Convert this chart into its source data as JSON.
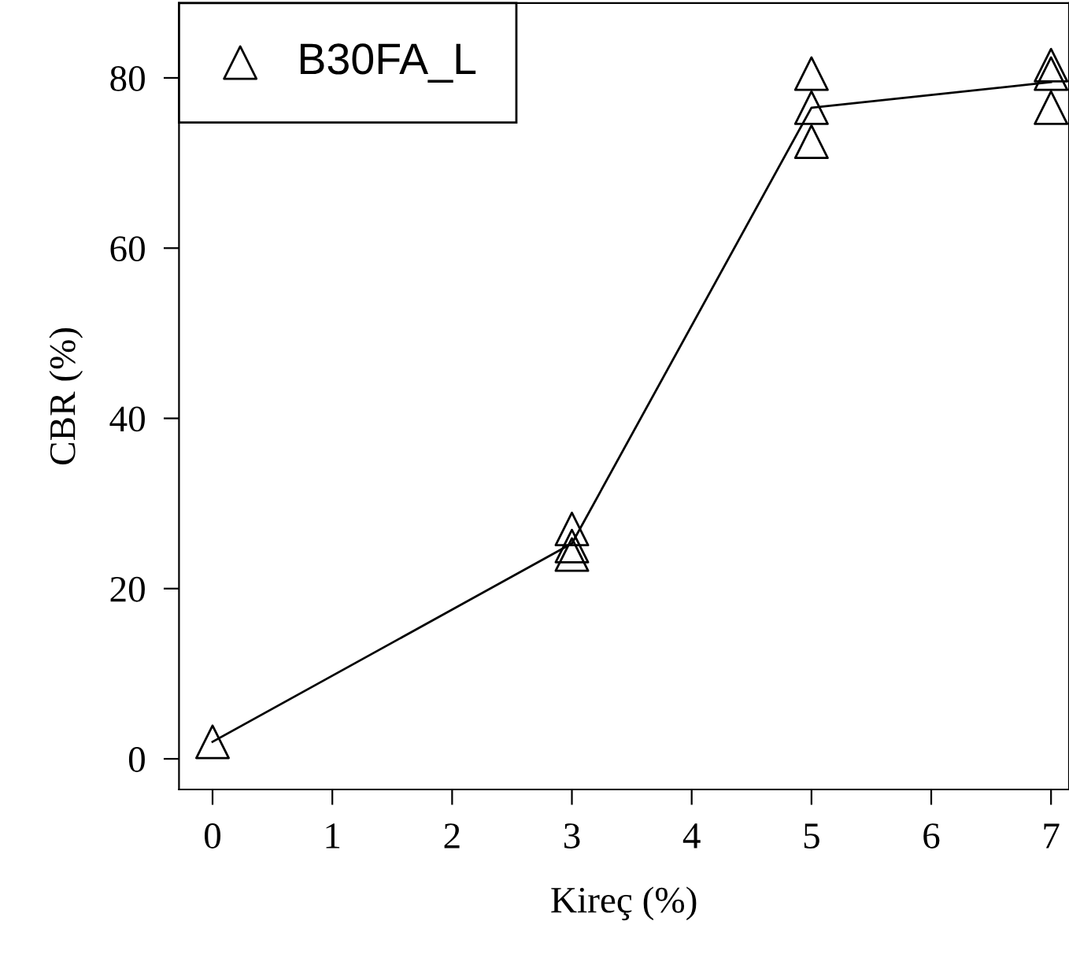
{
  "chart_data": {
    "type": "scatter",
    "xlabel": "Kireç (%)",
    "ylabel": "CBR (%)",
    "xlim": [
      -0.28,
      7.15
    ],
    "ylim": [
      -3.6,
      88.8
    ],
    "xticks": [
      0,
      1,
      2,
      3,
      4,
      5,
      6,
      7
    ],
    "yticks": [
      0,
      20,
      40,
      60,
      80
    ],
    "grid": false,
    "legend": "top left",
    "series": [
      {
        "name": "B30FA_L",
        "color": "#000000",
        "marker": "triangle",
        "x": [
          0,
          3,
          3,
          3,
          5,
          5,
          5,
          7,
          7,
          7
        ],
        "values": [
          2,
          27,
          25,
          24,
          80.5,
          76.5,
          72.5,
          81.5,
          80.5,
          76.5
        ]
      },
      {
        "type": "line",
        "color": "#000000",
        "marker": "none",
        "line_style": "solid",
        "x": [
          0,
          3,
          5,
          7
        ],
        "values": [
          2,
          25.3,
          76.5,
          79.5
        ]
      }
    ]
  }
}
